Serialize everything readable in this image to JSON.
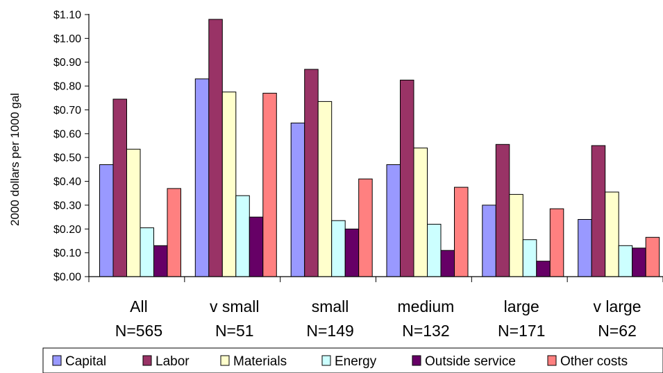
{
  "chart_data": {
    "type": "bar",
    "title": "",
    "xlabel": "",
    "ylabel": "2000 dollars per 1000 gal",
    "ylim": [
      0,
      1.1
    ],
    "ytick_labels": [
      "$0.00",
      "$0.10",
      "$0.20",
      "$0.30",
      "$0.40",
      "$0.50",
      "$0.60",
      "$0.70",
      "$0.80",
      "$0.90",
      "$1.00",
      "$1.10"
    ],
    "yticks": [
      0,
      0.1,
      0.2,
      0.3,
      0.4,
      0.5,
      0.6,
      0.7,
      0.8,
      0.9,
      1.0,
      1.1
    ],
    "grid": false,
    "legend_position": "bottom",
    "categories": [
      {
        "name": "All",
        "n": "N=565"
      },
      {
        "name": "v small",
        "n": "N=51"
      },
      {
        "name": "small",
        "n": "N=149"
      },
      {
        "name": "medium",
        "n": "N=132"
      },
      {
        "name": "large",
        "n": "N=171"
      },
      {
        "name": "v large",
        "n": "N=62"
      }
    ],
    "series": [
      {
        "name": "Capital",
        "color": "#9999ff",
        "values": [
          0.47,
          0.83,
          0.645,
          0.47,
          0.3,
          0.24
        ]
      },
      {
        "name": "Labor",
        "color": "#993366",
        "values": [
          0.745,
          1.08,
          0.87,
          0.825,
          0.555,
          0.55
        ]
      },
      {
        "name": "Materials",
        "color": "#ffffcc",
        "values": [
          0.535,
          0.775,
          0.735,
          0.54,
          0.345,
          0.355
        ]
      },
      {
        "name": "Energy",
        "color": "#ccffff",
        "values": [
          0.205,
          0.34,
          0.235,
          0.22,
          0.155,
          0.13
        ]
      },
      {
        "name": "Outside service",
        "color": "#660066",
        "values": [
          0.13,
          0.25,
          0.2,
          0.11,
          0.065,
          0.12
        ]
      },
      {
        "name": "Other costs",
        "color": "#ff8080",
        "values": [
          0.37,
          0.77,
          0.41,
          0.375,
          0.285,
          0.165
        ]
      }
    ]
  }
}
